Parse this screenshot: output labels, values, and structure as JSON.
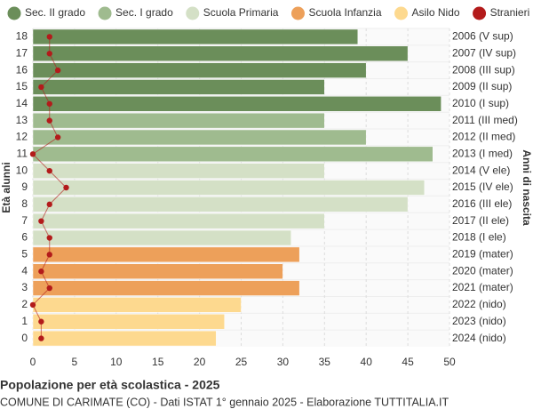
{
  "chart_data": {
    "type": "bar",
    "orientation": "horizontal",
    "title": "Popolazione per età scolastica - 2025",
    "subtitle": "COMUNE DI CARIMATE (CO) - Dati ISTAT 1° gennaio 2025 - Elaborazione TUTTITALIA.IT",
    "ylabel": "Età alunni",
    "y2label": "Anni di nascita",
    "categories": [
      "18",
      "17",
      "16",
      "15",
      "14",
      "13",
      "12",
      "11",
      "10",
      "9",
      "8",
      "7",
      "6",
      "5",
      "4",
      "3",
      "2",
      "1",
      "0"
    ],
    "year_labels": [
      "2006 (V sup)",
      "2007 (IV sup)",
      "2008 (III sup)",
      "2009 (II sup)",
      "2010 (I sup)",
      "2011 (III med)",
      "2012 (II med)",
      "2013 (I med)",
      "2014 (V ele)",
      "2015 (IV ele)",
      "2016 (III ele)",
      "2017 (II ele)",
      "2018 (I ele)",
      "2019 (mater)",
      "2020 (mater)",
      "2021 (mater)",
      "2022 (nido)",
      "2023 (nido)",
      "2024 (nido)"
    ],
    "series": [
      {
        "name": "Sec. II grado",
        "color": "#6b8e5a",
        "values": [
          39,
          45,
          40,
          35,
          49,
          null,
          null,
          null,
          null,
          null,
          null,
          null,
          null,
          null,
          null,
          null,
          null,
          null,
          null
        ]
      },
      {
        "name": "Sec. I grado",
        "color": "#9fbb8f",
        "values": [
          null,
          null,
          null,
          null,
          null,
          35,
          40,
          48,
          null,
          null,
          null,
          null,
          null,
          null,
          null,
          null,
          null,
          null,
          null
        ]
      },
      {
        "name": "Scuola Primaria",
        "color": "#d4e0c6",
        "values": [
          null,
          null,
          null,
          null,
          null,
          null,
          null,
          null,
          35,
          47,
          45,
          35,
          31,
          null,
          null,
          null,
          null,
          null,
          null
        ]
      },
      {
        "name": "Scuola Infanzia",
        "color": "#eda05a",
        "values": [
          null,
          null,
          null,
          null,
          null,
          null,
          null,
          null,
          null,
          null,
          null,
          null,
          null,
          32,
          30,
          32,
          null,
          null,
          null
        ]
      },
      {
        "name": "Asilo Nido",
        "color": "#fdd98f",
        "values": [
          null,
          null,
          null,
          null,
          null,
          null,
          null,
          null,
          null,
          null,
          null,
          null,
          null,
          null,
          null,
          null,
          25,
          23,
          22
        ]
      },
      {
        "name": "Stranieri",
        "color": "#b31b1b",
        "type": "line",
        "values": [
          2,
          2,
          3,
          1,
          2,
          2,
          3,
          0,
          2,
          4,
          2,
          1,
          2,
          2,
          1,
          2,
          0,
          1,
          1
        ]
      }
    ],
    "xlim": [
      0,
      50
    ],
    "xticks": [
      0,
      5,
      10,
      15,
      20,
      25,
      30,
      35,
      40,
      45,
      50
    ],
    "grid": true
  }
}
